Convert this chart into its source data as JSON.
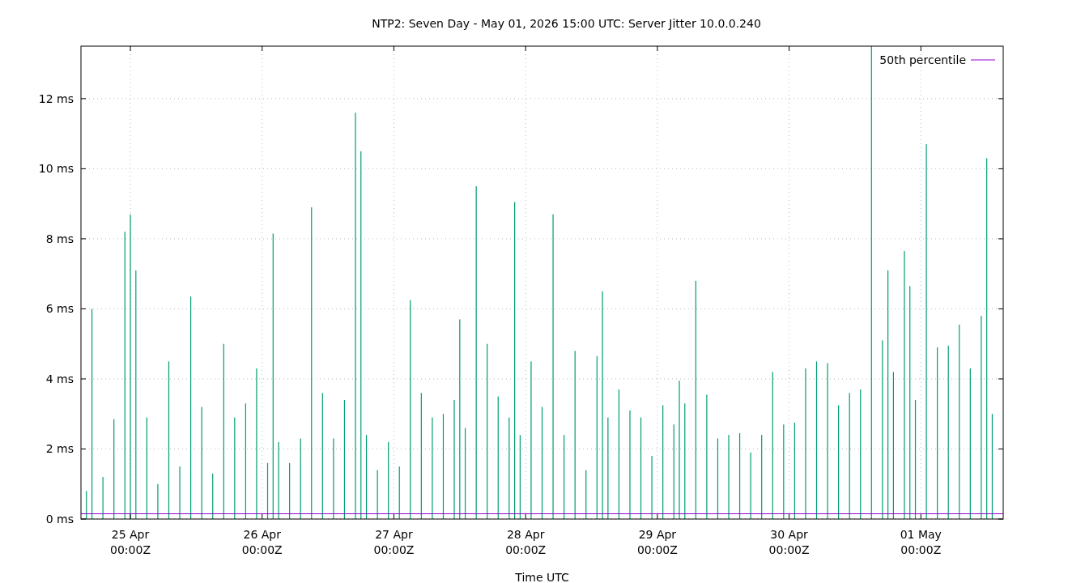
{
  "chart_data": {
    "type": "bar",
    "title": "NTP2: Seven Day - May 01, 2026 15:00 UTC: Server Jitter 10.0.0.240",
    "xlabel": "Time UTC",
    "x": [
      "2026-04-24T16:00",
      "2026-04-24T17:00",
      "2026-04-24T19:00",
      "2026-04-24T21:00",
      "2026-04-24T23:00",
      "2026-04-25T00:00",
      "2026-04-25T01:00",
      "2026-04-25T03:00",
      "2026-04-25T05:00",
      "2026-04-25T07:00",
      "2026-04-25T09:00",
      "2026-04-25T11:00",
      "2026-04-25T13:00",
      "2026-04-25T15:00",
      "2026-04-25T17:00",
      "2026-04-25T19:00",
      "2026-04-25T21:00",
      "2026-04-25T23:00",
      "2026-04-26T01:00",
      "2026-04-26T02:00",
      "2026-04-26T03:00",
      "2026-04-26T05:00",
      "2026-04-26T07:00",
      "2026-04-26T09:00",
      "2026-04-26T11:00",
      "2026-04-26T13:00",
      "2026-04-26T15:00",
      "2026-04-26T17:00",
      "2026-04-26T18:00",
      "2026-04-26T19:00",
      "2026-04-26T21:00",
      "2026-04-26T23:00",
      "2026-04-27T01:00",
      "2026-04-27T03:00",
      "2026-04-27T05:00",
      "2026-04-27T07:00",
      "2026-04-27T09:00",
      "2026-04-27T11:00",
      "2026-04-27T12:00",
      "2026-04-27T13:00",
      "2026-04-27T15:00",
      "2026-04-27T17:00",
      "2026-04-27T19:00",
      "2026-04-27T21:00",
      "2026-04-27T22:00",
      "2026-04-27T23:00",
      "2026-04-28T01:00",
      "2026-04-28T03:00",
      "2026-04-28T05:00",
      "2026-04-28T07:00",
      "2026-04-28T09:00",
      "2026-04-28T11:00",
      "2026-04-28T13:00",
      "2026-04-28T14:00",
      "2026-04-28T15:00",
      "2026-04-28T17:00",
      "2026-04-28T19:00",
      "2026-04-28T21:00",
      "2026-04-28T23:00",
      "2026-04-29T01:00",
      "2026-04-29T03:00",
      "2026-04-29T04:00",
      "2026-04-29T05:00",
      "2026-04-29T07:00",
      "2026-04-29T09:00",
      "2026-04-29T11:00",
      "2026-04-29T13:00",
      "2026-04-29T15:00",
      "2026-04-29T17:00",
      "2026-04-29T19:00",
      "2026-04-29T21:00",
      "2026-04-29T23:00",
      "2026-04-30T01:00",
      "2026-04-30T03:00",
      "2026-04-30T05:00",
      "2026-04-30T07:00",
      "2026-04-30T09:00",
      "2026-04-30T11:00",
      "2026-04-30T13:00",
      "2026-04-30T15:00",
      "2026-04-30T17:00",
      "2026-04-30T18:00",
      "2026-04-30T19:00",
      "2026-04-30T21:00",
      "2026-04-30T22:00",
      "2026-04-30T23:00",
      "2026-05-01T01:00",
      "2026-05-01T03:00",
      "2026-05-01T05:00",
      "2026-05-01T07:00",
      "2026-05-01T09:00",
      "2026-05-01T11:00",
      "2026-05-01T12:00",
      "2026-05-01T13:00"
    ],
    "series": [
      {
        "color": "#009e73",
        "values": [
          0.8,
          6.0,
          1.2,
          2.85,
          8.2,
          8.7,
          7.1,
          2.9,
          1.0,
          4.5,
          1.5,
          6.35,
          3.2,
          1.3,
          5.0,
          2.9,
          3.3,
          4.3,
          1.6,
          8.15,
          2.2,
          1.6,
          2.3,
          8.9,
          3.6,
          2.3,
          3.4,
          11.6,
          10.5,
          2.4,
          1.4,
          2.2,
          1.5,
          6.25,
          3.6,
          2.9,
          3.0,
          3.4,
          5.7,
          2.6,
          9.5,
          5.0,
          3.5,
          2.9,
          9.05,
          2.4,
          4.5,
          3.2,
          8.7,
          2.4,
          4.8,
          1.4,
          4.65,
          6.5,
          2.9,
          3.7,
          3.1,
          2.9,
          1.8,
          3.25,
          2.7,
          3.95,
          3.3,
          6.8,
          3.55,
          2.3,
          2.4,
          2.45,
          1.9,
          2.4,
          4.2,
          2.7,
          2.75,
          4.3,
          4.5,
          4.45,
          3.25,
          3.6,
          3.7,
          13.5,
          5.1,
          7.1,
          4.2,
          7.65,
          6.65,
          3.4,
          10.7,
          4.9,
          4.95,
          5.55,
          4.3,
          5.8,
          10.3,
          3.0
        ]
      },
      {
        "name": "50th percentile",
        "type": "line",
        "color": "#9400d3",
        "x": [
          "2026-04-24T15:00",
          "2026-05-01T15:00"
        ],
        "values": [
          0.15,
          0.15
        ]
      }
    ],
    "xlim": [
      "2026-04-24T15:00",
      "2026-05-01T15:00"
    ],
    "xticks": [
      {
        "value": "2026-04-25",
        "label": "25 Apr\n00:00Z"
      },
      {
        "value": "2026-04-26",
        "label": "26 Apr\n00:00Z"
      },
      {
        "value": "2026-04-27",
        "label": "27 Apr\n00:00Z"
      },
      {
        "value": "2026-04-28",
        "label": "28 Apr\n00:00Z"
      },
      {
        "value": "2026-04-29",
        "label": "29 Apr\n00:00Z"
      },
      {
        "value": "2026-04-30",
        "label": "30 Apr\n00:00Z"
      },
      {
        "value": "2026-05-01",
        "label": "01 May\n00:00Z"
      }
    ],
    "ylim": [
      0,
      13.5
    ],
    "yticks": [
      {
        "value": 0,
        "label": "0 ms"
      },
      {
        "value": 2,
        "label": "2 ms"
      },
      {
        "value": 4,
        "label": "4 ms"
      },
      {
        "value": 6,
        "label": "6 ms"
      },
      {
        "value": 8,
        "label": "8 ms"
      },
      {
        "value": 10,
        "label": "10 ms"
      },
      {
        "value": 12,
        "label": "12 ms"
      }
    ],
    "grid": true,
    "legend": "top right"
  }
}
